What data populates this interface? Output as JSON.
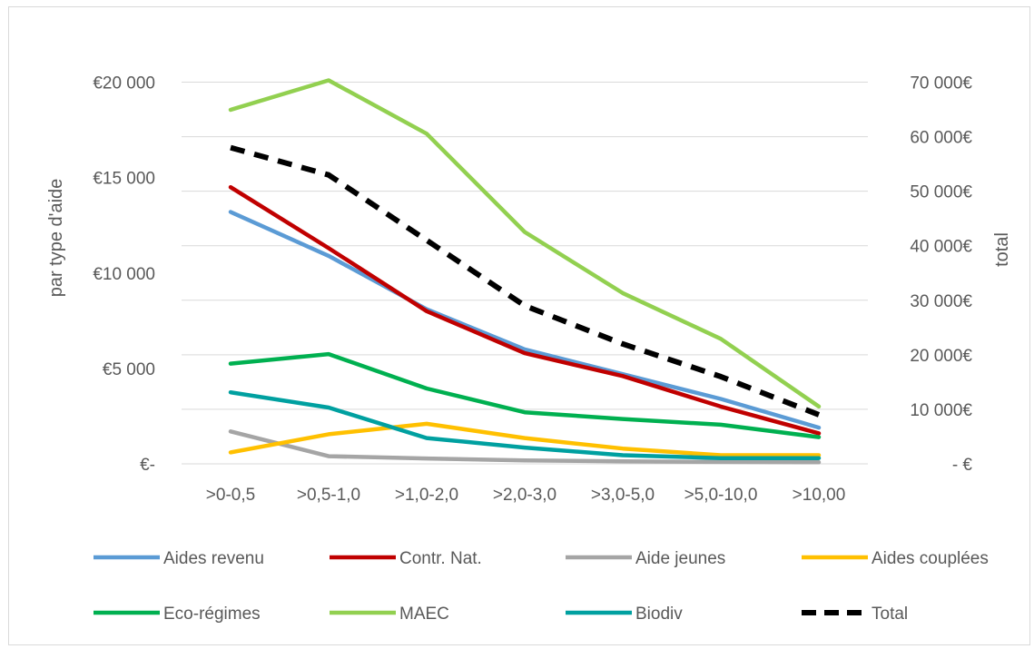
{
  "chart_data": {
    "type": "line",
    "categories": [
      ">0-0,5",
      ">0,5-1,0",
      ">1,0-2,0",
      ">2,0-3,0",
      ">3,0-5,0",
      ">5,0-10,0",
      ">10,00"
    ],
    "ylabel": "par type d'aide",
    "y2label": "total",
    "ylim": [
      0,
      22500
    ],
    "y2lim": [
      0,
      78750
    ],
    "y_ticks": [
      0,
      5000,
      10000,
      15000,
      20000
    ],
    "y_tick_labels": [
      "€-",
      "€5 000",
      "€10 000",
      "€15 000",
      "€20 000"
    ],
    "y2_ticks": [
      0,
      10000,
      20000,
      30000,
      40000,
      50000,
      60000,
      70000
    ],
    "y2_tick_labels": [
      "- €",
      "10 000€",
      "20 000€",
      "30 000€",
      "40 000€",
      "50 000€",
      "60 000€",
      "70 000€"
    ],
    "grid": true,
    "legend_position": "bottom",
    "series": [
      {
        "name": "Aides revenu",
        "color": "#5b9bd5",
        "axis": "left",
        "dashed": false,
        "values": [
          13200,
          10900,
          8100,
          6000,
          4700,
          3400,
          1900
        ]
      },
      {
        "name": "Contr. Nat.",
        "color": "#c00000",
        "axis": "left",
        "dashed": false,
        "values": [
          14500,
          11300,
          8000,
          5800,
          4600,
          3000,
          1600
        ]
      },
      {
        "name": "Aide jeunes",
        "color": "#a5a5a5",
        "axis": "left",
        "dashed": false,
        "values": [
          1700,
          400,
          280,
          180,
          130,
          100,
          80
        ]
      },
      {
        "name": "Aides couplées",
        "color": "#ffc000",
        "axis": "left",
        "dashed": false,
        "values": [
          600,
          1550,
          2100,
          1350,
          800,
          450,
          450
        ]
      },
      {
        "name": "Eco-régimes",
        "color": "#00b050",
        "axis": "left",
        "dashed": false,
        "values": [
          5250,
          5750,
          3950,
          2700,
          2350,
          2050,
          1400
        ]
      },
      {
        "name": "MAEC",
        "color": "#92d050",
        "axis": "left",
        "dashed": false,
        "values": [
          18550,
          20100,
          17300,
          12150,
          8950,
          6550,
          3000
        ]
      },
      {
        "name": "Biodiv",
        "color": "#00a0a0",
        "axis": "left",
        "dashed": false,
        "values": [
          3750,
          2950,
          1350,
          850,
          450,
          300,
          300
        ]
      },
      {
        "name": "Total",
        "color": "#000000",
        "axis": "right",
        "dashed": true,
        "values": [
          58000,
          53000,
          41000,
          29000,
          22000,
          16000,
          9000
        ]
      }
    ]
  }
}
